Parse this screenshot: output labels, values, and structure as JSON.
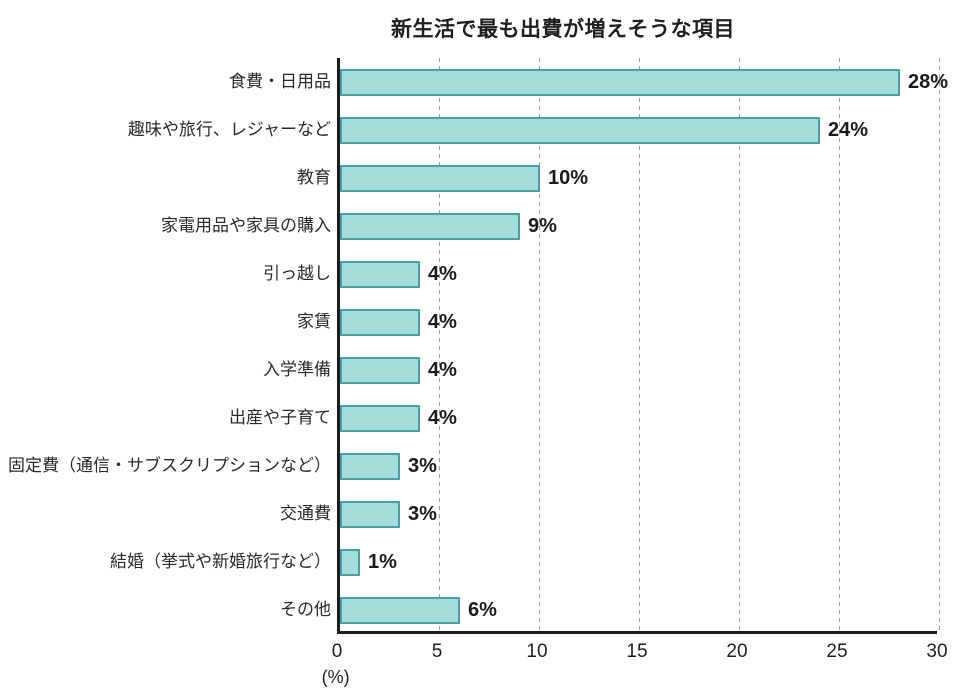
{
  "chart_data": {
    "type": "bar",
    "orientation": "horizontal",
    "title": "新生活で最も出費が増えそうな項目",
    "categories": [
      "食費・日用品",
      "趣味や旅行、レジャーなど",
      "教育",
      "家電用品や家具の購入",
      "引っ越し",
      "家賃",
      "入学準備",
      "出産や子育て",
      "固定費（通信・サブスクリプションなど）",
      "交通費",
      "結婚（挙式や新婚旅行など）",
      "その他"
    ],
    "values": [
      28,
      24,
      10,
      9,
      4,
      4,
      4,
      4,
      3,
      3,
      1,
      6
    ],
    "display_values": [
      "28%",
      "24%",
      "10%",
      "9%",
      "4%",
      "4%",
      "4%",
      "4%",
      "3%",
      "3%",
      "1%",
      "6%"
    ],
    "xlabel": "(%)",
    "xlim": [
      0,
      30
    ],
    "xticks": [
      0,
      5,
      10,
      15,
      20,
      25,
      30
    ],
    "grid": "dashed-vertical",
    "legend": "none",
    "colors": {
      "bar_fill": "#a5dbd8",
      "bar_border": "#47a0a7",
      "axis": "#1c1c1c",
      "gridline": "#9b9b9b",
      "text": "#1f1f1f"
    }
  }
}
